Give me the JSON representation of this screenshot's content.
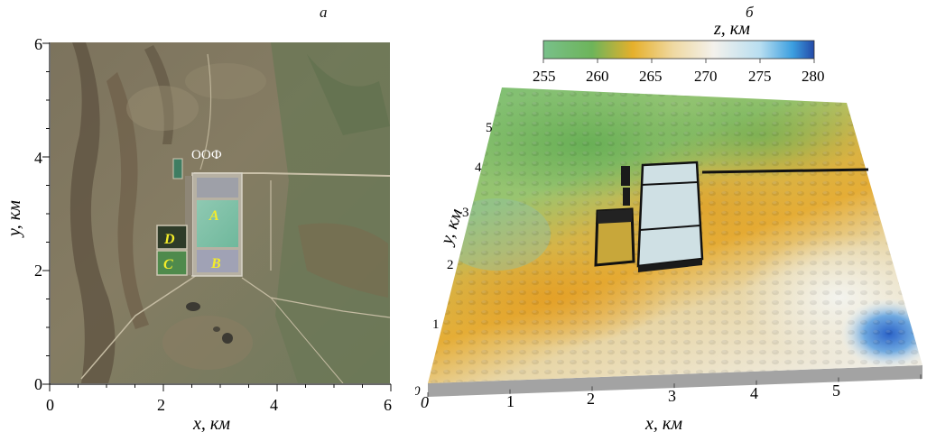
{
  "panel_a": {
    "letter": "а",
    "x_axis_label": "x, км",
    "y_axis_label": "y, км",
    "x_ticks": [
      "0",
      "2",
      "4",
      "6"
    ],
    "y_ticks": [
      "0",
      "2",
      "4",
      "6"
    ],
    "facility_label": "ООФ",
    "pond_labels": [
      "A",
      "B",
      "C",
      "D"
    ]
  },
  "panel_b": {
    "letter": "б",
    "colorbar_title": "z, км",
    "colorbar_ticks": [
      "255",
      "260",
      "265",
      "270",
      "275",
      "280"
    ],
    "x_axis_label": "x, км",
    "y_axis_label": "y, км",
    "x_ticks": [
      "0",
      "1",
      "2",
      "3",
      "4",
      "5"
    ],
    "y_ticks": [
      "0",
      "1",
      "2",
      "3",
      "4",
      "5"
    ]
  },
  "colors": {
    "terrain_green": "#5aa84e",
    "terrain_orange": "#e0a22a",
    "terrain_sand": "#e8dcb8",
    "terrain_white": "#eef3f6",
    "terrain_blue": "#2a62c8"
  }
}
